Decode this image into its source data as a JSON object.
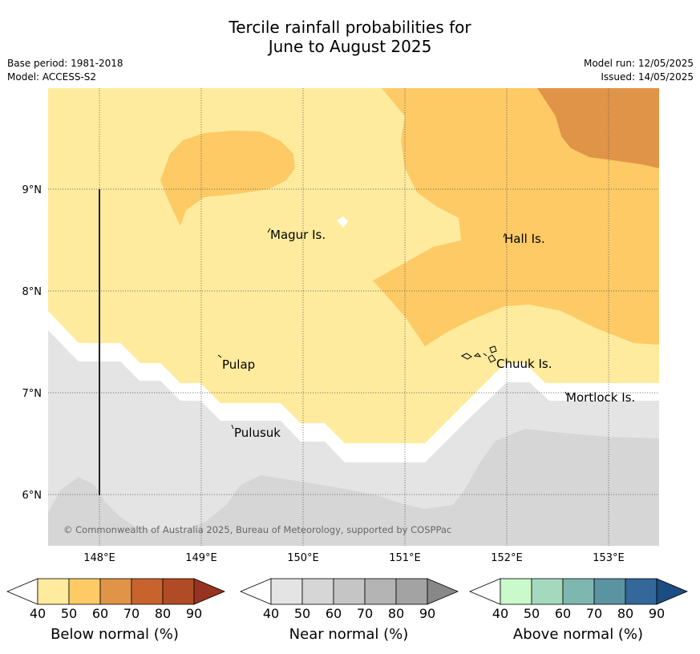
{
  "title_line1": "Tercile rainfall probabilities for",
  "title_line2": "June to August 2025",
  "meta_left": {
    "base_period": "Base period: 1981-2018",
    "model": "Model: ACCESS-S2"
  },
  "meta_right": {
    "model_run": "Model run: 12/05/2025",
    "issued": "Issued: 14/05/2025"
  },
  "colors": {
    "below_40_50": "#feeb9d",
    "below_50_60": "#fdca66",
    "below_60_70": "#e09447",
    "near_40_50": "#e4e4e4",
    "near_50_60": "#d6d6d6"
  },
  "map": {
    "lon_ticks": [
      "148°E",
      "149°E",
      "150°E",
      "151°E",
      "152°E",
      "153°E"
    ],
    "lat_ticks": [
      "9°N",
      "8°N",
      "7°N",
      "6°N"
    ],
    "places": [
      {
        "name": "Magur Is."
      },
      {
        "name": "Hall Is."
      },
      {
        "name": "Pulap"
      },
      {
        "name": "Chuuk Is."
      },
      {
        "name": "Mortlock Is."
      },
      {
        "name": "Pulusuk"
      }
    ],
    "copyright": "© Commonwealth of Australia 2025, Bureau of Meteorology, supported by COSPPac"
  },
  "colorbars": [
    {
      "label": "Below normal (%)",
      "ticks": [
        "40",
        "50",
        "60",
        "70",
        "80",
        "90"
      ],
      "colors": [
        "#feeb9d",
        "#fdca66",
        "#e09447",
        "#c9632e",
        "#b14b26",
        "#963321"
      ]
    },
    {
      "label": "Near normal (%)",
      "ticks": [
        "40",
        "50",
        "60",
        "70",
        "80",
        "90"
      ],
      "colors": [
        "#e4e4e4",
        "#d6d6d6",
        "#c5c5c5",
        "#b4b4b4",
        "#a3a3a3",
        "#888888"
      ]
    },
    {
      "label": "Above normal (%)",
      "ticks": [
        "40",
        "50",
        "60",
        "70",
        "80",
        "90"
      ],
      "colors": [
        "#caf9cb",
        "#a4d9bd",
        "#7eb7b0",
        "#5c93a1",
        "#34679a",
        "#1c4d82"
      ]
    }
  ]
}
